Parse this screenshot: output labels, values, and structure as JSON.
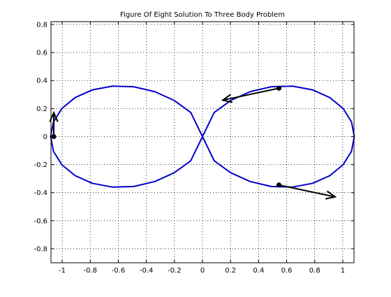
{
  "chart_data": {
    "type": "line",
    "title": "Figure Of Eight Solution To Three Body Problem",
    "xlabel": "",
    "ylabel": "",
    "xlim": [
      -1.08,
      1.08
    ],
    "ylim": [
      -0.9,
      0.82
    ],
    "grid": true,
    "xticks": [
      "-1",
      "-0.8",
      "-0.6",
      "-0.4",
      "-0.2",
      "0",
      "0.2",
      "0.4",
      "0.6",
      "0.8",
      "1"
    ],
    "xtick_values": [
      -1,
      -0.8,
      -0.6,
      -0.4,
      -0.2,
      0,
      0.2,
      0.4,
      0.6,
      0.8,
      1
    ],
    "yticks": [
      "0.8",
      "0.6",
      "0.4",
      "0.2",
      "0",
      "-0.2",
      "-0.4",
      "-0.6",
      "-0.8"
    ],
    "ytick_values": [
      0.8,
      0.6,
      0.4,
      0.2,
      0,
      -0.2,
      -0.4,
      -0.6,
      -0.8
    ],
    "series": [
      {
        "color": "#0000cc",
        "x": [
          1.0824,
          1.0622,
          1.0028,
          0.9082,
          0.7852,
          0.6426,
          0.4908,
          0.3402,
          0.2013,
          0.0835,
          0.0,
          -0.0835,
          -0.2013,
          -0.3402,
          -0.4908,
          -0.6426,
          -0.7852,
          -0.9082,
          -1.0028,
          -1.0622,
          -1.0824,
          -1.0622,
          -1.0028,
          -0.9082,
          -0.7852,
          -0.6426,
          -0.4908,
          -0.3402,
          -0.2013,
          -0.0835,
          0.0,
          0.0835,
          0.2013,
          0.3402,
          0.4908,
          0.6426,
          0.7852,
          0.9082,
          1.0028,
          1.0622,
          1.0824
        ],
        "y": [
          0.0,
          0.1049,
          0.2,
          0.2782,
          0.3332,
          0.36,
          0.3558,
          0.3208,
          0.2578,
          0.1724,
          0.0,
          -0.1724,
          -0.2578,
          -0.3208,
          -0.3558,
          -0.36,
          -0.3332,
          -0.2782,
          -0.2,
          -0.1049,
          0.0,
          0.1049,
          0.2,
          0.2782,
          0.3332,
          0.36,
          0.3558,
          0.3208,
          0.2578,
          0.1724,
          0.0,
          -0.1724,
          -0.2578,
          -0.3208,
          -0.3558,
          -0.36,
          -0.3332,
          -0.2782,
          -0.2,
          -0.1049,
          0.0
        ]
      }
    ],
    "bodies": [
      {
        "x": -1.06,
        "y": 0.0,
        "vx": 0.0,
        "vy": 0.17
      },
      {
        "x": 0.545,
        "y": 0.345,
        "vx": -0.4,
        "vy": -0.085
      },
      {
        "x": 0.545,
        "y": -0.345,
        "vx": 0.4,
        "vy": -0.085
      }
    ],
    "body_color": "#000000"
  }
}
